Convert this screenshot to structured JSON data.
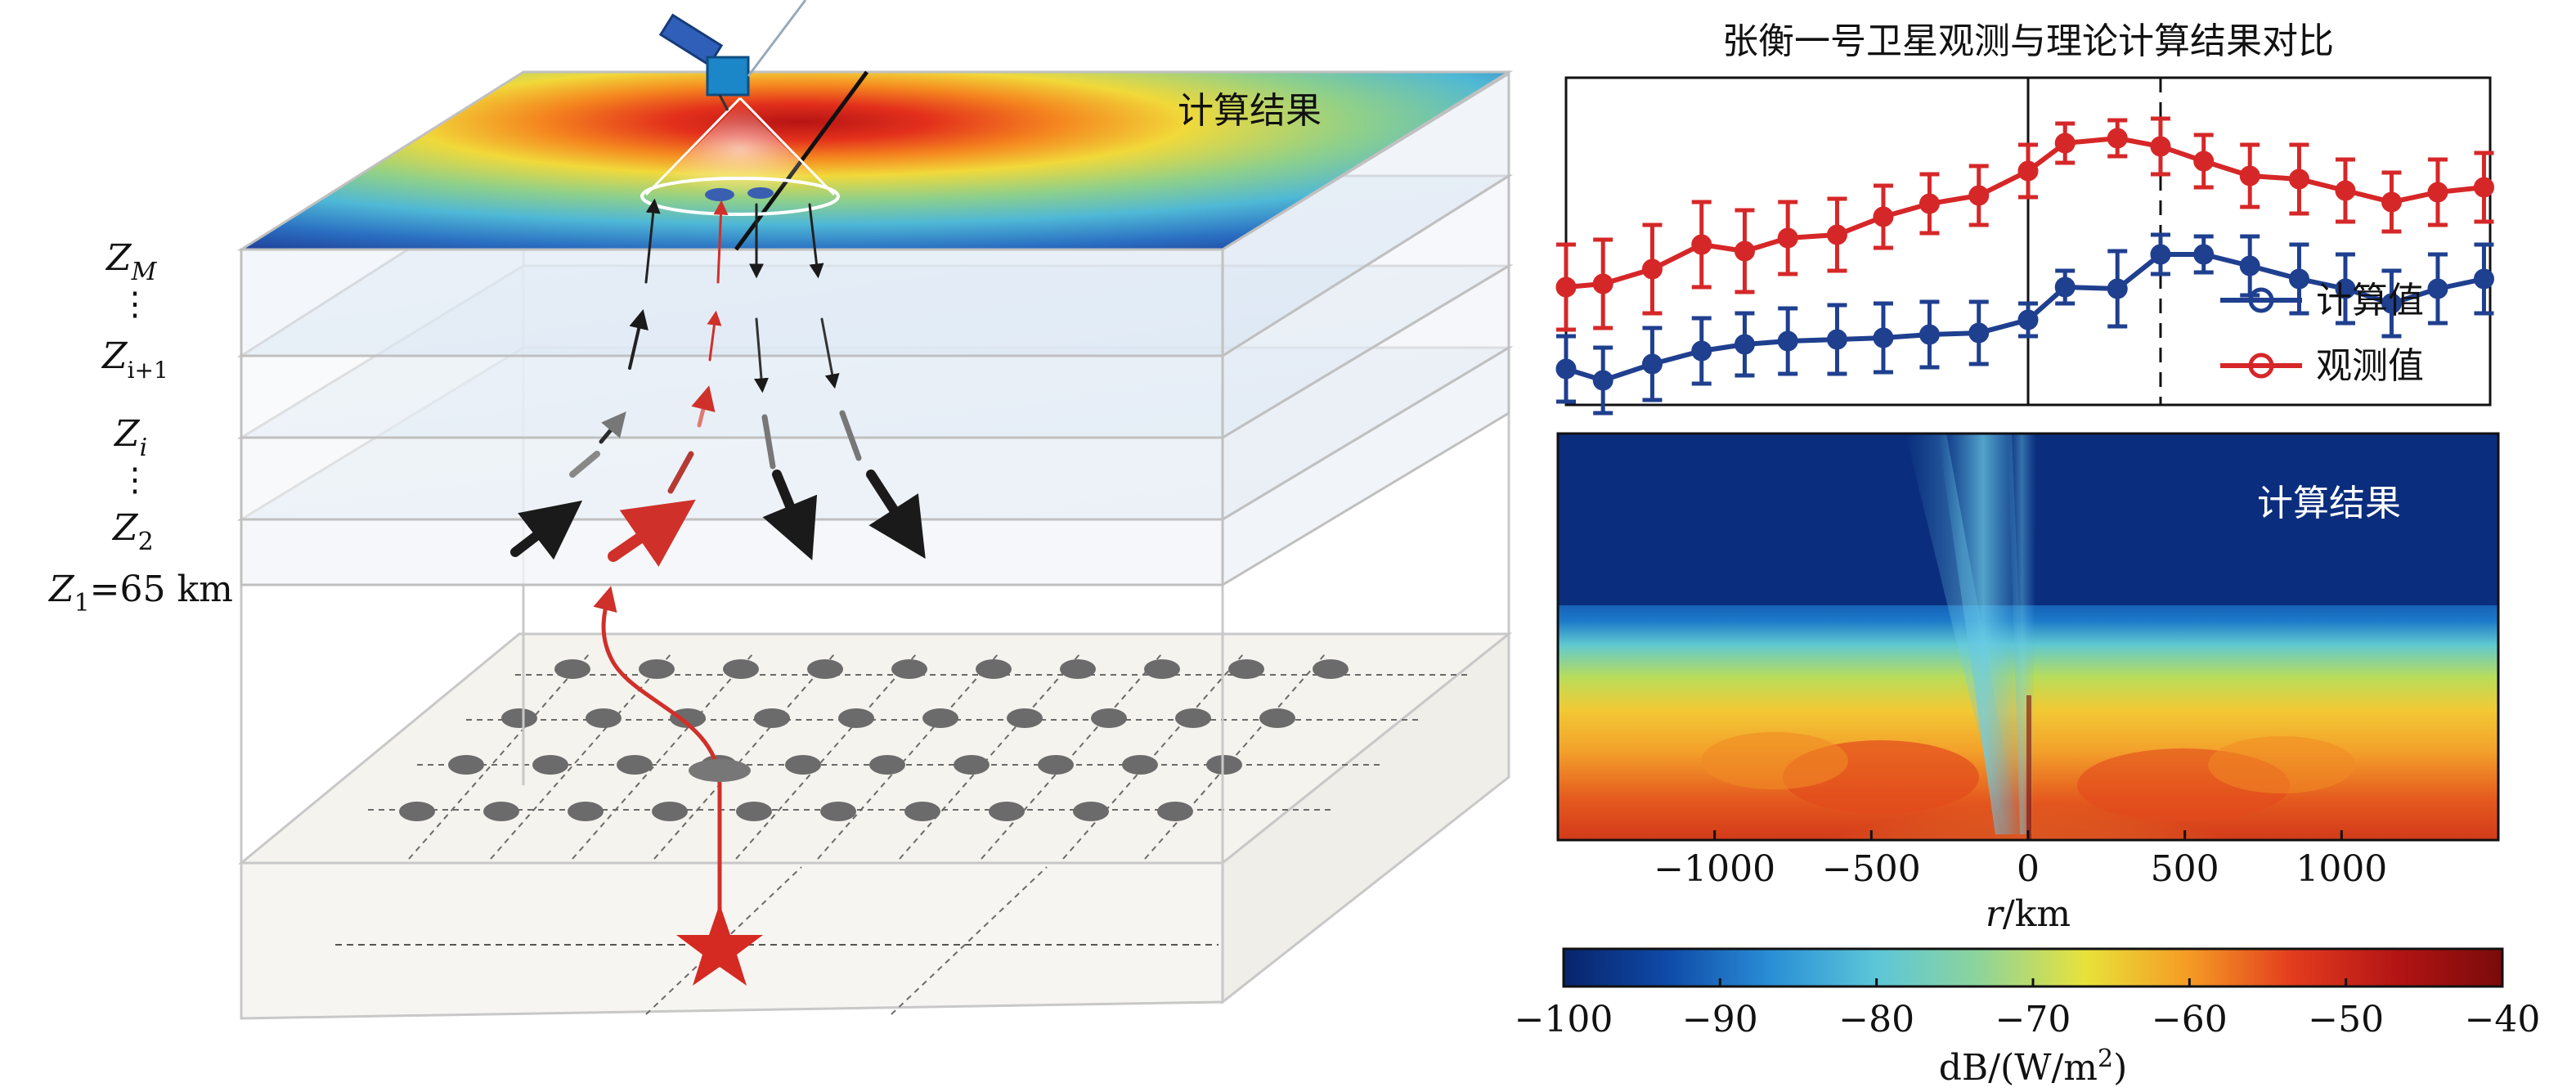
{
  "diagram": {
    "top_label": "计算结果",
    "layer_labels": {
      "zm": {
        "main": "Z",
        "sub": "M"
      },
      "zi1": {
        "main": "Z",
        "sub": "i+1"
      },
      "zi": {
        "main": "Z",
        "sub": "i"
      },
      "z2": {
        "main": "Z",
        "sub": "2"
      },
      "z1": {
        "main": "Z",
        "sub": "1",
        "suffix": "=65 km"
      },
      "ellipsis": "⋮"
    }
  },
  "line_panel": {
    "title": "张衡一号卫星观测与理论计算结果对比",
    "colors": {
      "computed": "#1f3f8f",
      "observed": "#d62728"
    },
    "chart_data": {
      "type": "line",
      "x": [
        -1500,
        -1380,
        -1220,
        -1060,
        -920,
        -780,
        -620,
        -470,
        -320,
        -160,
        0,
        120,
        290,
        430,
        570,
        720,
        880,
        1030,
        1180,
        1330,
        1480
      ],
      "series": [
        {
          "name": "计算值",
          "values": [
            1.1,
            0.75,
            1.25,
            1.65,
            1.85,
            1.95,
            2.0,
            2.05,
            2.15,
            2.2,
            2.6,
            3.6,
            3.55,
            4.6,
            4.6,
            4.25,
            3.85,
            3.55,
            3.1,
            3.55,
            3.85
          ],
          "err": [
            1.0,
            1.0,
            1.1,
            1.0,
            0.95,
            1.0,
            1.05,
            1.05,
            1.0,
            0.95,
            0.5,
            0.5,
            1.15,
            0.6,
            0.55,
            0.9,
            1.05,
            1.05,
            1.0,
            1.05,
            1.05
          ]
        },
        {
          "name": "观测值",
          "values": [
            3.6,
            3.7,
            4.15,
            4.9,
            4.7,
            5.1,
            5.2,
            5.75,
            6.15,
            6.4,
            7.15,
            8.0,
            8.15,
            7.9,
            7.45,
            7.0,
            6.9,
            6.55,
            6.2,
            6.5,
            6.65
          ],
          "err": [
            1.3,
            1.35,
            1.35,
            1.3,
            1.25,
            1.1,
            1.1,
            0.95,
            0.9,
            0.9,
            0.8,
            0.6,
            0.55,
            0.85,
            0.8,
            0.95,
            1.05,
            0.95,
            0.9,
            1.0,
            1.05
          ]
        }
      ],
      "xlim": [
        -1500,
        1500
      ],
      "ylim": [
        0,
        10
      ],
      "vlines": [
        {
          "x": 0,
          "style": "solid"
        },
        {
          "x": 430,
          "style": "dashed"
        }
      ],
      "legend": "bottom-right"
    }
  },
  "heatmap_panel": {
    "label": "计算结果",
    "xlabel": "r/km",
    "x_ticks": [
      "−1000",
      "−500",
      "0",
      "500",
      "1000"
    ],
    "x_tick_values": [
      -1000,
      -500,
      0,
      500,
      1000
    ],
    "xlim": [
      -1500,
      1500
    ]
  },
  "colorbar": {
    "ticks": [
      "−100",
      "−90",
      "−80",
      "−70",
      "−60",
      "−50",
      "−40"
    ],
    "tick_values": [
      -100,
      -90,
      -80,
      -70,
      -60,
      -50,
      -40
    ],
    "range": [
      -100,
      -40
    ],
    "label_pre": "dB/(W/m",
    "label_sup": "2",
    "label_post": ")",
    "colors": [
      "#08246b",
      "#0f4aa8",
      "#2a8fd6",
      "#5cc6d8",
      "#8fd49a",
      "#e8e23a",
      "#f59a24",
      "#e23b1e",
      "#b31414",
      "#7a0a0a"
    ]
  }
}
